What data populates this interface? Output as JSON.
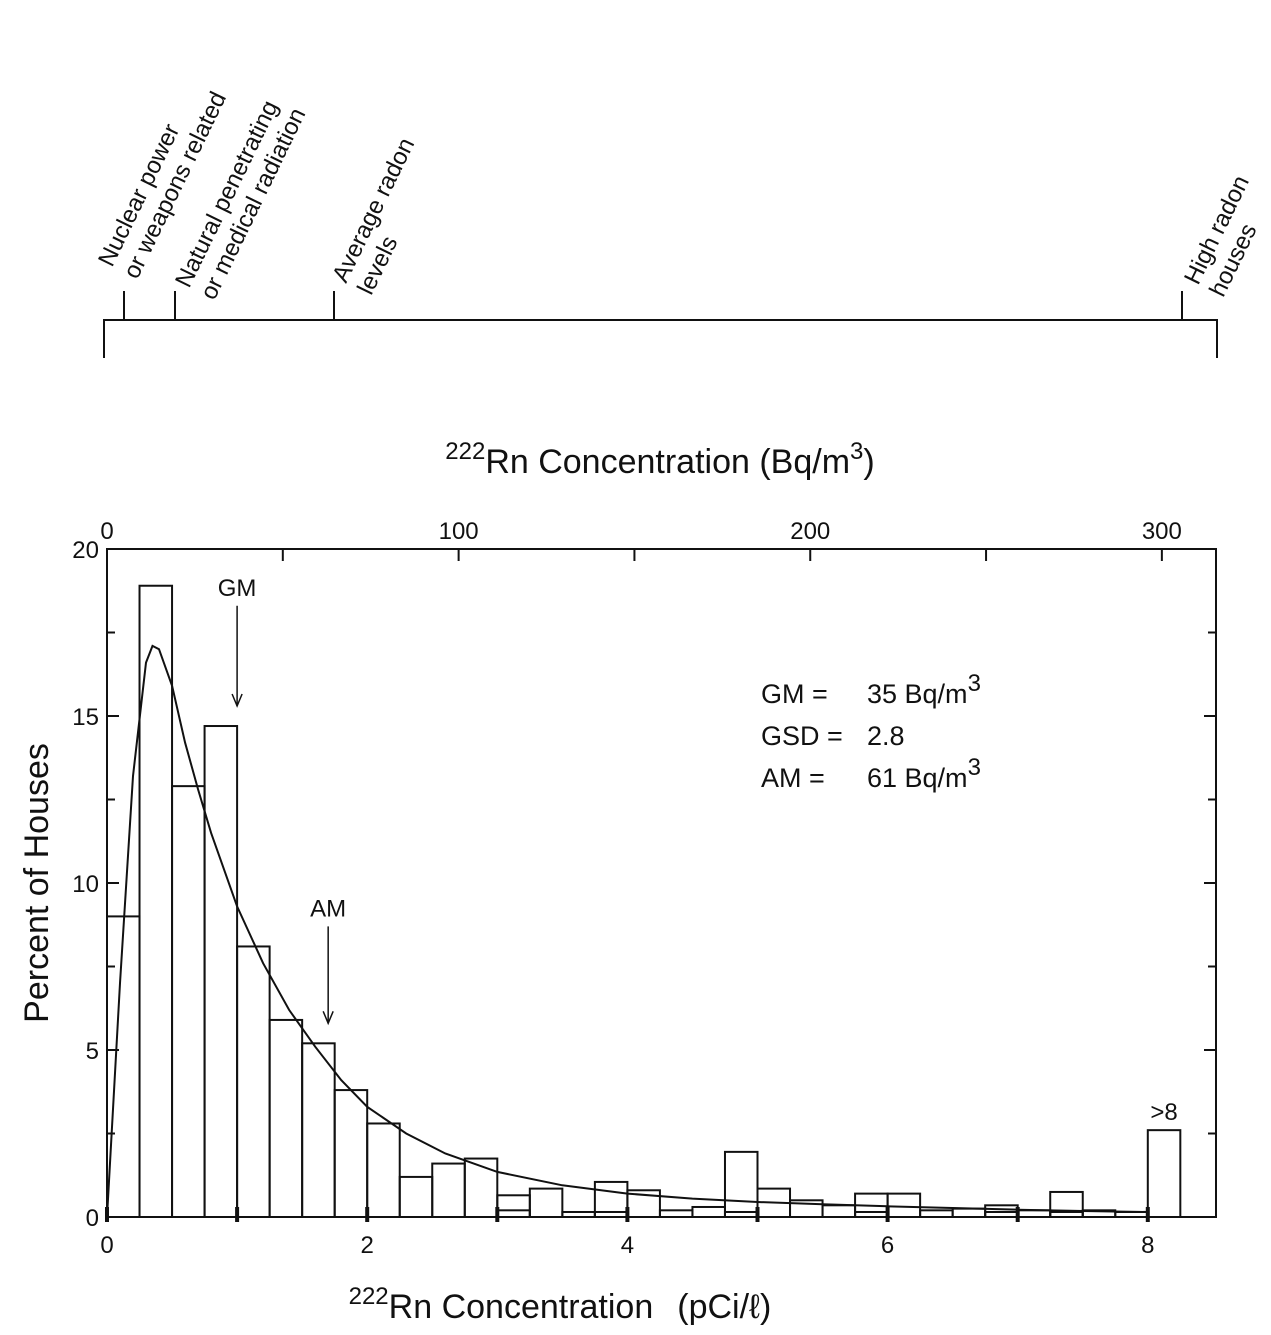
{
  "chart_data": {
    "type": "bar",
    "title": "",
    "xlabel_pre": "222",
    "xlabel_main": "Rn Concentration",
    "xlabel_unit": "(pCi/ℓ)",
    "top_axis_label_pre": "222",
    "top_axis_label_main": "Rn Concentration (Bq/m",
    "top_axis_label_sup": "3",
    "top_axis_label_end": ")",
    "ylabel": "Percent of Houses",
    "xlim": [
      0,
      8.5
    ],
    "ylim": [
      0,
      20
    ],
    "xticks": [
      0,
      2,
      4,
      6,
      8
    ],
    "xtick_labels": [
      "0",
      "2",
      "4",
      "6",
      "8"
    ],
    "yticks": [
      0,
      5,
      10,
      15,
      20
    ],
    "ytick_labels": [
      "0",
      "5",
      "10",
      "15",
      "20"
    ],
    "top_ticks": [
      0,
      100,
      200,
      300
    ],
    "top_tick_labels": [
      "0",
      "100",
      "200",
      "300"
    ],
    "bin_width": 0.25,
    "bins": [
      {
        "x": 0.0,
        "values": [
          9.0
        ]
      },
      {
        "x": 0.25,
        "values": [
          18.9
        ]
      },
      {
        "x": 0.5,
        "values": [
          12.9
        ]
      },
      {
        "x": 0.75,
        "values": [
          14.7
        ]
      },
      {
        "x": 1.0,
        "values": [
          8.1
        ]
      },
      {
        "x": 1.25,
        "values": [
          5.9
        ]
      },
      {
        "x": 1.5,
        "values": [
          5.2
        ]
      },
      {
        "x": 1.75,
        "values": [
          3.8
        ]
      },
      {
        "x": 2.0,
        "values": [
          2.8
        ]
      },
      {
        "x": 2.25,
        "values": [
          1.2
        ]
      },
      {
        "x": 2.5,
        "values": [
          1.6
        ]
      },
      {
        "x": 2.75,
        "values": [
          1.75
        ]
      },
      {
        "x": 3.0,
        "values": [
          0.65,
          0.2
        ]
      },
      {
        "x": 3.25,
        "values": [
          0.85
        ]
      },
      {
        "x": 3.5,
        "values": [
          0.15
        ]
      },
      {
        "x": 3.75,
        "values": [
          1.05,
          0.15
        ]
      },
      {
        "x": 4.0,
        "values": [
          0.8
        ]
      },
      {
        "x": 4.25,
        "values": [
          0.2
        ]
      },
      {
        "x": 4.5,
        "values": [
          0.3
        ]
      },
      {
        "x": 4.75,
        "values": [
          1.95,
          0.15
        ]
      },
      {
        "x": 5.0,
        "values": [
          0.85
        ]
      },
      {
        "x": 5.25,
        "values": [
          0.5
        ]
      },
      {
        "x": 5.5,
        "values": [
          0.35
        ]
      },
      {
        "x": 5.75,
        "values": [
          0.7,
          0.15
        ]
      },
      {
        "x": 6.0,
        "values": [
          0.7
        ]
      },
      {
        "x": 6.25,
        "values": [
          0.2
        ]
      },
      {
        "x": 6.5,
        "values": [
          0.25
        ]
      },
      {
        "x": 6.75,
        "values": [
          0.35,
          0.15
        ]
      },
      {
        "x": 7.0,
        "values": [
          0.2
        ]
      },
      {
        "x": 7.25,
        "values": [
          0.75,
          0.15
        ]
      },
      {
        "x": 7.5,
        "values": [
          0.2
        ]
      },
      {
        "x": 7.75,
        "values": [
          0.15
        ]
      },
      {
        "x": 8.0,
        "values": [
          2.6
        ]
      }
    ],
    "fit_curve": [
      [
        0.0,
        0.0
      ],
      [
        0.1,
        7.0
      ],
      [
        0.2,
        13.2
      ],
      [
        0.3,
        16.6
      ],
      [
        0.35,
        17.1
      ],
      [
        0.4,
        17.0
      ],
      [
        0.5,
        15.9
      ],
      [
        0.6,
        14.2
      ],
      [
        0.7,
        12.8
      ],
      [
        0.8,
        11.5
      ],
      [
        1.0,
        9.3
      ],
      [
        1.2,
        7.6
      ],
      [
        1.4,
        6.2
      ],
      [
        1.6,
        5.1
      ],
      [
        1.8,
        4.1
      ],
      [
        2.0,
        3.3
      ],
      [
        2.3,
        2.5
      ],
      [
        2.6,
        1.9
      ],
      [
        3.0,
        1.35
      ],
      [
        3.5,
        0.95
      ],
      [
        4.0,
        0.7
      ],
      [
        4.5,
        0.55
      ],
      [
        5.0,
        0.45
      ],
      [
        5.5,
        0.38
      ],
      [
        6.0,
        0.32
      ],
      [
        6.5,
        0.27
      ],
      [
        7.0,
        0.22
      ],
      [
        7.5,
        0.18
      ],
      [
        8.0,
        0.15
      ]
    ],
    "annotations": [
      {
        "label": "GM",
        "x": 1.0,
        "y_tip": 15.3,
        "y_text": 18.6
      },
      {
        "label": "AM",
        "x": 1.7,
        "y_tip": 5.8,
        "y_text": 9.0
      }
    ],
    "overflow_label": ">8",
    "stats": [
      {
        "pre": "GM =",
        "value": "35 Bq/m",
        "sup": "3"
      },
      {
        "pre": "GSD =",
        "value": "2.8",
        "sup": ""
      },
      {
        "pre": "AM =",
        "value": "61 Bq/m",
        "sup": "3"
      }
    ]
  },
  "scale_diagram": {
    "markers": [
      {
        "lines": [
          "Nuclear power",
          "or weapons related"
        ]
      },
      {
        "lines": [
          "Natural penetrating",
          "or medical radiation"
        ]
      },
      {
        "lines": [
          "Average radon",
          "levels"
        ]
      },
      {
        "lines": [
          "High radon",
          "houses"
        ]
      }
    ]
  }
}
